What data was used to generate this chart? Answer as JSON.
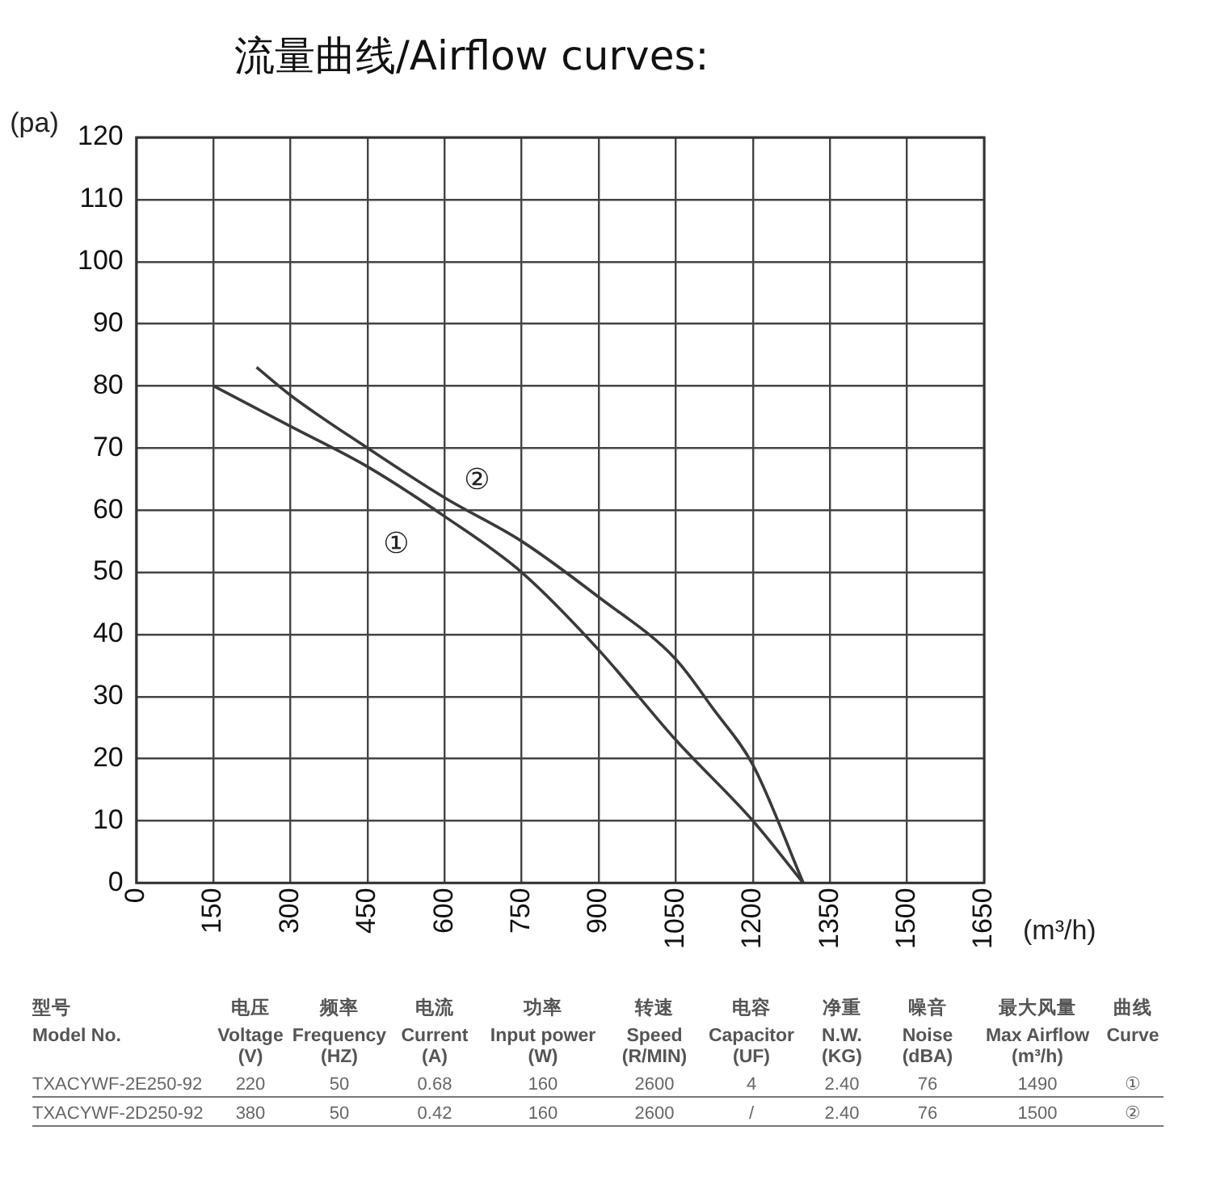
{
  "chart_data": {
    "type": "line",
    "title": "流量曲线/Airflow curves:",
    "xlabel": "(m³/h)",
    "ylabel": "(pa)",
    "xlim": [
      0,
      1650
    ],
    "xticks": [
      0,
      150,
      300,
      450,
      600,
      750,
      900,
      1050,
      1200,
      1350,
      1500,
      1650
    ],
    "ylim": [
      0,
      120
    ],
    "yticks": [
      0,
      10,
      20,
      30,
      40,
      50,
      60,
      70,
      80,
      90,
      100,
      110,
      120
    ],
    "grid": true,
    "legend": false,
    "marker": "none",
    "line_style": "solid",
    "series": [
      {
        "name": "①",
        "color": "#3a3a3a",
        "x": [
          150,
          300,
          450,
          600,
          750,
          900,
          1050,
          1200,
          1298
        ],
        "values": [
          80,
          73.5,
          67,
          59,
          50,
          37.5,
          23,
          10,
          0
        ]
      },
      {
        "name": "②",
        "color": "#3a3a3a",
        "x": [
          234,
          300,
          450,
          600,
          750,
          900,
          1050,
          1123,
          1200,
          1298
        ],
        "values": [
          83,
          78.5,
          70,
          62,
          55,
          46,
          36,
          28,
          19,
          0
        ]
      }
    ],
    "annotations": [
      "型号",
      "电压",
      "频率",
      "电流",
      "功率",
      "转速",
      "电容",
      "净重",
      "噪音",
      "最大风量",
      "曲线",
      "Model No.",
      "Voltage\n(V)",
      "Frequency\n(HZ)",
      "Current\n(A)",
      "Input power\n(W)",
      "Speed\n(R/MIN)",
      "Capacitor\n(UF)",
      "N.W.\n(KG)",
      "Noise\n(dBA)",
      "Max Airflow\n(m³/h)",
      "Curve",
      "TXACYWF-2E250-92",
      "220",
      "50",
      "0.68",
      "160",
      "2600",
      "4",
      "2.40",
      "76",
      "1490",
      "①",
      "TXACYWF-2D250-92",
      "380",
      "50",
      "0.42",
      "160",
      "2600",
      "/",
      "2.40",
      "76",
      "1500",
      "②"
    ]
  }
}
